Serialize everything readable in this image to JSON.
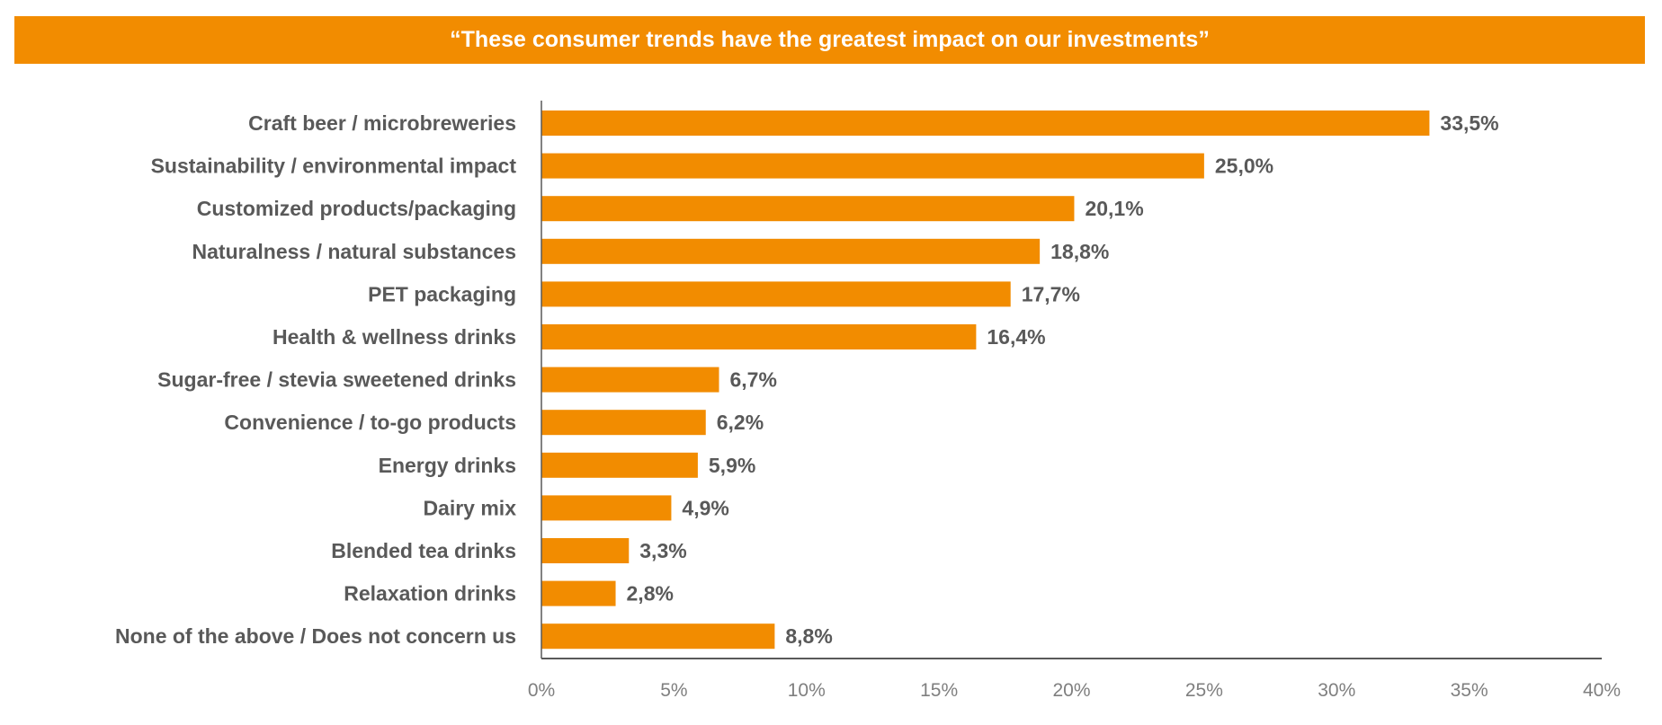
{
  "chart_data": {
    "type": "bar",
    "orientation": "horizontal",
    "title": "“These consumer trends have the greatest impact on our investments”",
    "categories": [
      "Craft beer / microbreweries",
      "Sustainability  / environmental impact",
      "Customized products/packaging",
      "Naturalness / natural substances",
      "PET packaging",
      "Health & wellness drinks",
      "Sugar-free / stevia sweetened drinks",
      "Convenience / to-go products",
      "Energy drinks",
      "Dairy mix",
      "Blended tea drinks",
      "Relaxation drinks",
      "None of the above / Does not concern us"
    ],
    "values": [
      33.5,
      25.0,
      20.1,
      18.8,
      17.7,
      16.4,
      6.7,
      6.2,
      5.9,
      4.9,
      3.3,
      2.8,
      8.8
    ],
    "data_labels": [
      "33,5%",
      "25,0%",
      "20,1%",
      "18,8%",
      "17,7%",
      "16,4%",
      "6,7%",
      "6,2%",
      "5,9%",
      "4,9%",
      "3,3%",
      "2,8%",
      "8,8%"
    ],
    "xlim": [
      0,
      40
    ],
    "xticks": [
      "0%",
      "5%",
      "10%",
      "15%",
      "20%",
      "25%",
      "30%",
      "35%",
      "40%"
    ],
    "xlabel": "",
    "ylabel": "",
    "grid": false,
    "colors": {
      "bar": "#F28C00",
      "text": "#595959",
      "axis": "#595959"
    }
  }
}
